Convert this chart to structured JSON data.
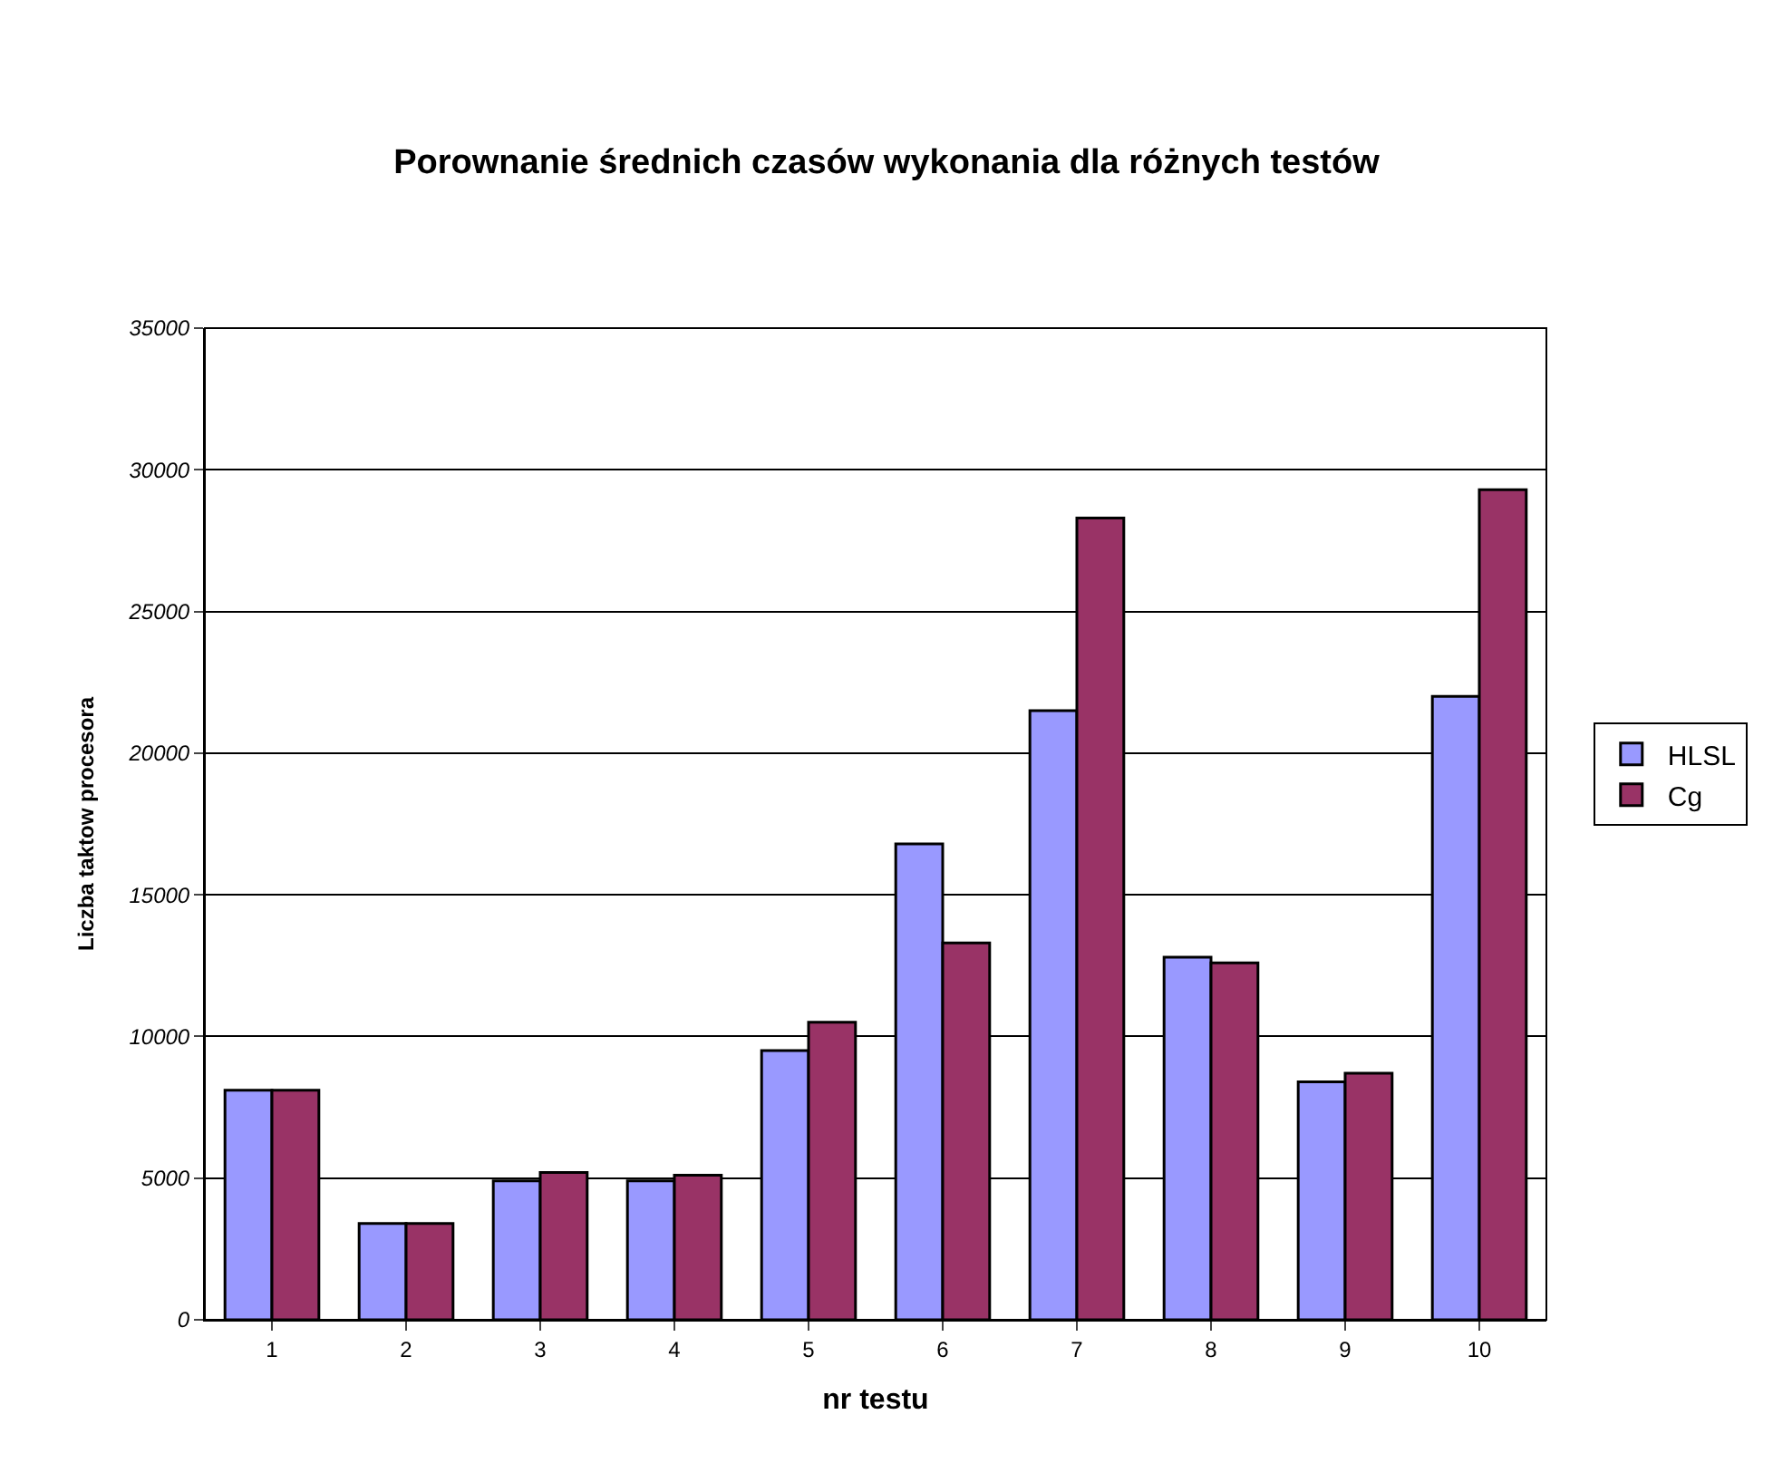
{
  "chart_data": {
    "type": "bar",
    "title": "Porownanie średnich czasów wykonania dla różnych testów",
    "xlabel": "nr testu",
    "ylabel": "Liczba taktow procesora",
    "categories": [
      "1",
      "2",
      "3",
      "4",
      "5",
      "6",
      "7",
      "8",
      "9",
      "10"
    ],
    "series": [
      {
        "name": "HLSL",
        "color": "#9999ff",
        "values": [
          8100,
          3400,
          4900,
          4900,
          9500,
          16800,
          21500,
          12800,
          8400,
          22000
        ]
      },
      {
        "name": "Cg",
        "color": "#993366",
        "values": [
          8100,
          3400,
          5200,
          5100,
          10500,
          13300,
          28300,
          12600,
          8700,
          29300
        ]
      }
    ],
    "ylim": [
      0,
      35000
    ],
    "yticks": [
      0,
      5000,
      10000,
      15000,
      20000,
      25000,
      30000,
      35000
    ],
    "grid": "y",
    "legend": "right"
  }
}
